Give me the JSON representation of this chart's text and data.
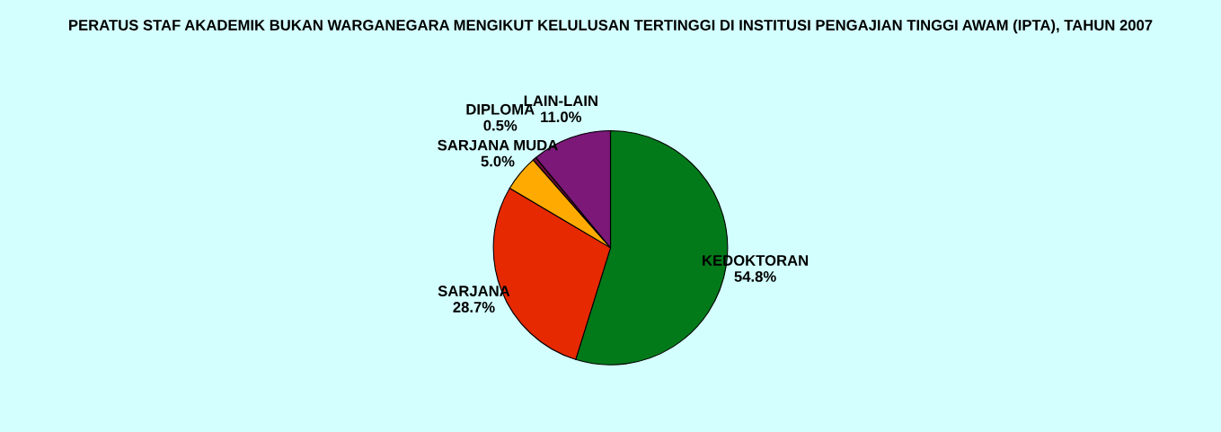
{
  "chart_data": {
    "type": "pie",
    "title": "PERATUS STAF AKADEMIK BUKAN WARGANEGARA MENGIKUT KELULUSAN TERTINGGI DI INSTITUSI PENGAJIAN TINGGI AWAM (IPTA), TAHUN 2007",
    "categories": [
      "KEDOKTORAN",
      "SARJANA",
      "SARJANA MUDA",
      "DIPLOMA",
      "LAIN-LAIN"
    ],
    "values": [
      54.8,
      28.7,
      5.0,
      0.5,
      11.0
    ],
    "value_labels": [
      "54.8%",
      "28.7%",
      "5.0%",
      "0.5%",
      "11.0%"
    ],
    "colors": [
      "#037a1a",
      "#e62900",
      "#ffaa00",
      "#6a0d3a",
      "#7b1878"
    ],
    "legend": false
  }
}
